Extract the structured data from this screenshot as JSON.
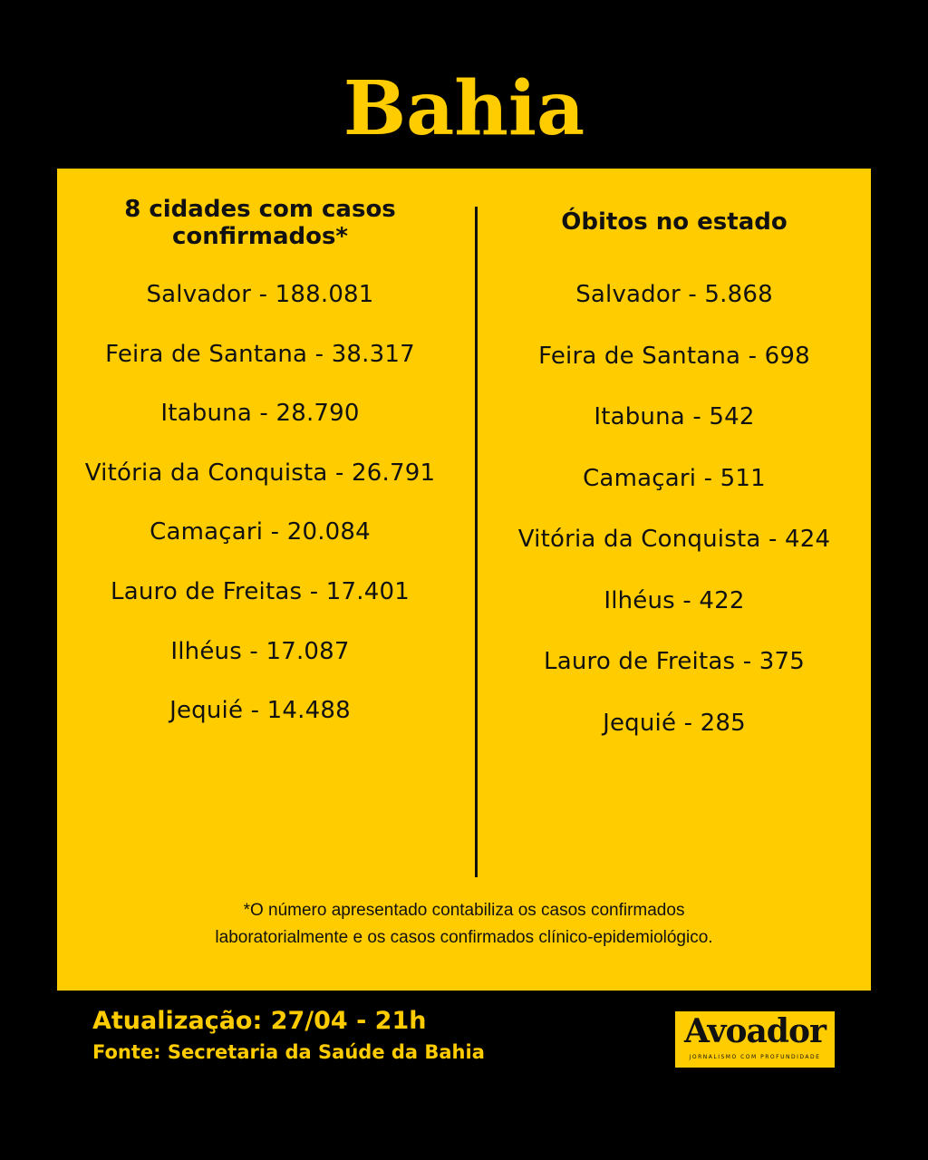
{
  "title": "Bahia",
  "cases": {
    "header": "8 cidades com casos confirmados*",
    "items": [
      "Salvador - 188.081",
      "Feira de Santana - 38.317",
      "Itabuna - 28.790",
      "Vitória da Conquista - 26.791",
      "Camaçari - 20.084",
      "Lauro de Freitas - 17.401",
      "Ilhéus - 17.087",
      "Jequié -  14.488"
    ]
  },
  "deaths": {
    "header": "Óbitos no estado",
    "items": [
      "Salvador - 5.868",
      "Feira de Santana - 698",
      "Itabuna - 542",
      "Camaçari - 511",
      "Vitória da Conquista - 424",
      "Ilhéus - 422",
      "Lauro de Freitas - 375",
      "Jequié - 285"
    ]
  },
  "footnote": {
    "line1": "*O número apresentado contabiliza os casos confirmados",
    "line2": "laboratorialmente e os casos confirmados clínico-epidemiológico."
  },
  "footer": {
    "update": "Atualização: 27/04 - 21h",
    "source": "Fonte: Secretaria da Saúde da Bahia"
  },
  "logo": {
    "wordmark": "Avoador",
    "tagline": "JORNALISMO COM PROFUNDIDADE"
  },
  "colors": {
    "background": "#000000",
    "accent": "#FFCC00",
    "text": "#111111"
  }
}
